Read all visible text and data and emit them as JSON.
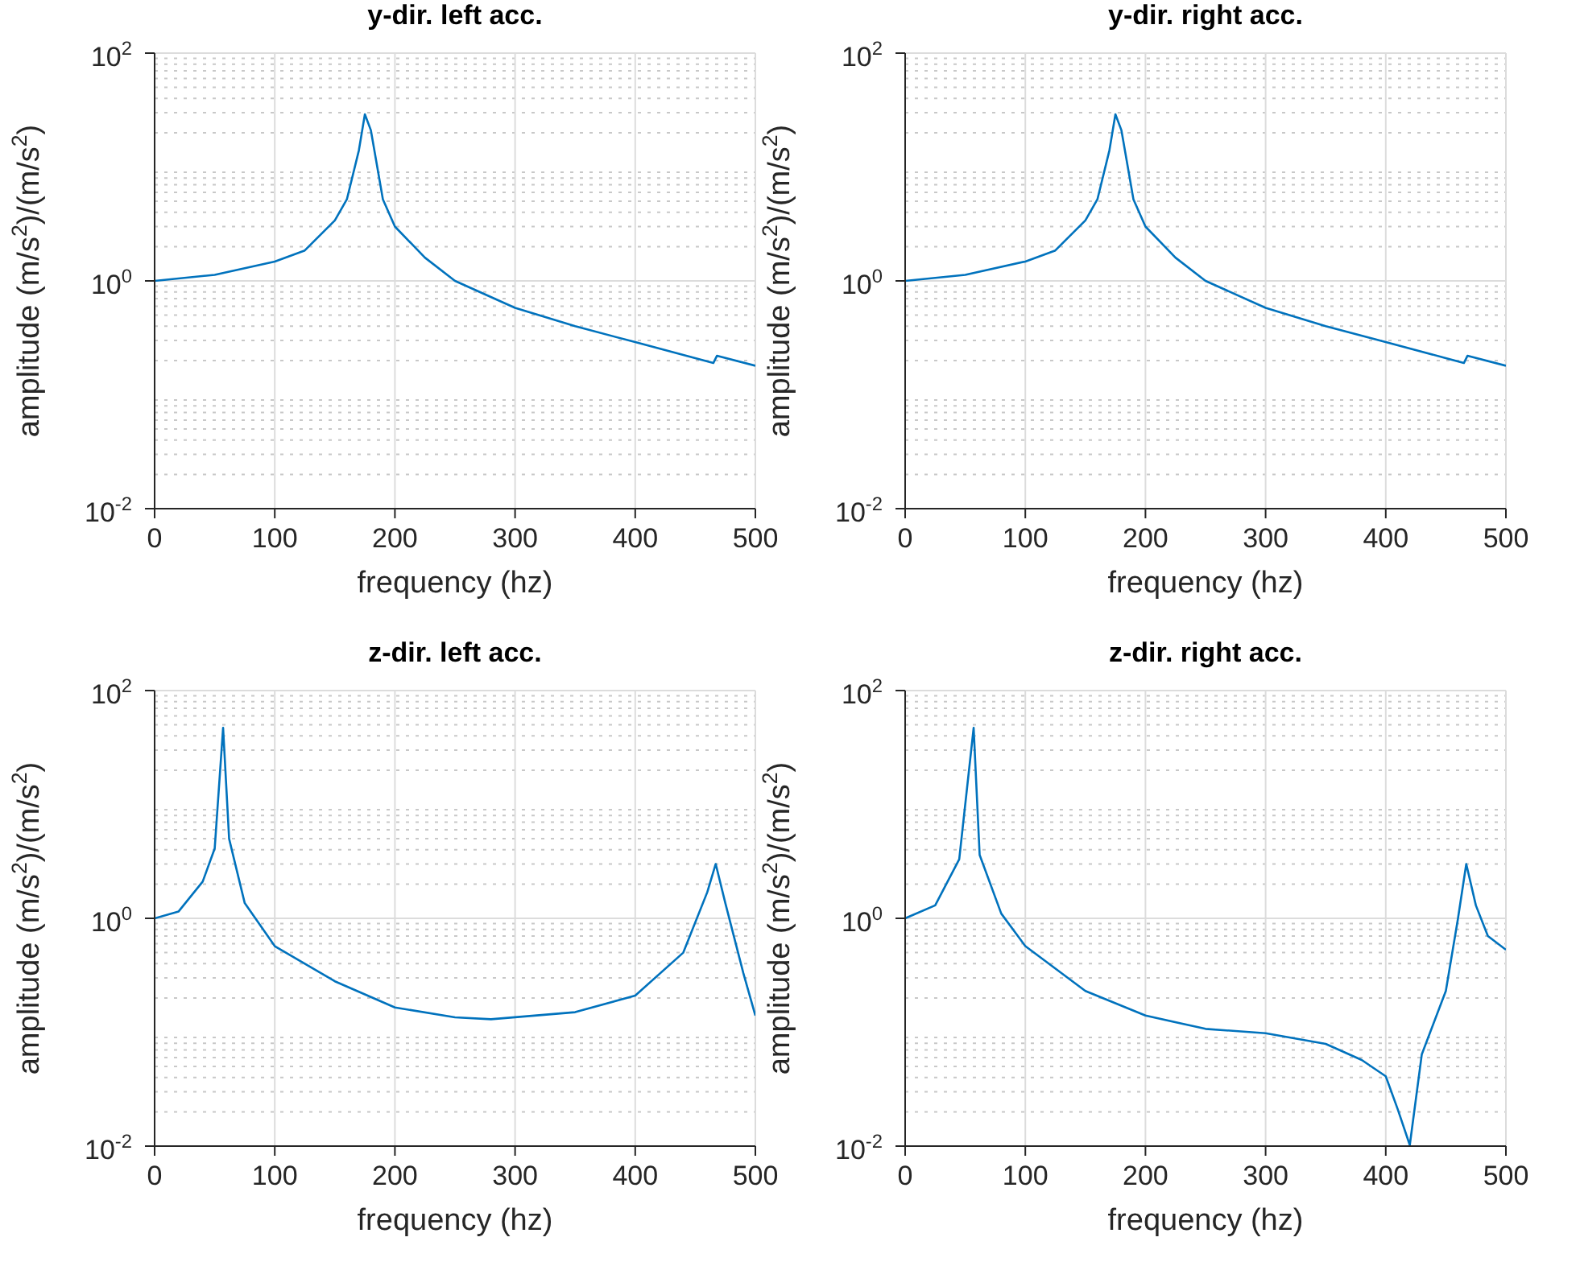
{
  "chart_data": [
    {
      "type": "line",
      "title": "y-dir. left acc.",
      "xlabel": "frequency (hz)",
      "ylabel": "amplitude (m/s$^{2}$)/(m/s$^{2}$)",
      "xlim": [
        0,
        500
      ],
      "xticks": [
        0,
        100,
        200,
        300,
        400,
        500
      ],
      "ylim": [
        0.01,
        100
      ],
      "yticks": [
        {
          "value": 0.01,
          "label": "10$^{-2}$"
        },
        {
          "value": 1,
          "label": "10$^{0}$"
        },
        {
          "value": 100,
          "label": "10$^{2}$"
        }
      ],
      "log": "y",
      "grid": true,
      "x": [
        0,
        50,
        100,
        125,
        150,
        160,
        170,
        175,
        180,
        190,
        200,
        225,
        250,
        300,
        350,
        400,
        450,
        465,
        468,
        500
      ],
      "series": [
        {
          "color": "#0072bd",
          "values": [
            1.0,
            1.13,
            1.48,
            1.85,
            3.4,
            5.2,
            14,
            29,
            21,
            5.2,
            3.0,
            1.6,
            1.0,
            0.58,
            0.4,
            0.29,
            0.21,
            0.19,
            0.22,
            0.18
          ]
        }
      ]
    },
    {
      "type": "line",
      "title": "y-dir. right acc.",
      "xlabel": "frequency (hz)",
      "ylabel": "amplitude (m/s$^{2}$)/(m/s$^{2}$)",
      "xlim": [
        0,
        500
      ],
      "xticks": [
        0,
        100,
        200,
        300,
        400,
        500
      ],
      "ylim": [
        0.01,
        100
      ],
      "yticks": [
        {
          "value": 0.01,
          "label": "10$^{-2}$"
        },
        {
          "value": 1,
          "label": "10$^{0}$"
        },
        {
          "value": 100,
          "label": "10$^{2}$"
        }
      ],
      "log": "y",
      "grid": true,
      "x": [
        0,
        50,
        100,
        125,
        150,
        160,
        170,
        175,
        180,
        190,
        200,
        225,
        250,
        300,
        350,
        400,
        450,
        465,
        468,
        500
      ],
      "series": [
        {
          "color": "#0072bd",
          "values": [
            1.0,
            1.13,
            1.48,
            1.85,
            3.4,
            5.2,
            14,
            29,
            21,
            5.2,
            3.0,
            1.6,
            1.0,
            0.58,
            0.4,
            0.29,
            0.21,
            0.19,
            0.22,
            0.18
          ]
        }
      ]
    },
    {
      "type": "line",
      "title": "z-dir. left acc.",
      "xlabel": "frequency (hz)",
      "ylabel": "amplitude (m/s$^{2}$)/(m/s$^{2}$)",
      "xlim": [
        0,
        500
      ],
      "xticks": [
        0,
        100,
        200,
        300,
        400,
        500
      ],
      "ylim": [
        0.01,
        100
      ],
      "yticks": [
        {
          "value": 0.01,
          "label": "10$^{-2}$"
        },
        {
          "value": 1,
          "label": "10$^{0}$"
        },
        {
          "value": 100,
          "label": "10$^{2}$"
        }
      ],
      "log": "y",
      "grid": true,
      "x": [
        0,
        20,
        40,
        50,
        57,
        62,
        75,
        100,
        150,
        200,
        250,
        280,
        350,
        400,
        440,
        460,
        467,
        475,
        490,
        500
      ],
      "series": [
        {
          "color": "#0072bd",
          "values": [
            1.0,
            1.15,
            2.1,
            4.1,
            47,
            5,
            1.36,
            0.57,
            0.28,
            0.165,
            0.135,
            0.13,
            0.15,
            0.21,
            0.5,
            1.7,
            3.0,
            1.36,
            0.33,
            0.14
          ]
        }
      ]
    },
    {
      "type": "line",
      "title": "z-dir. right acc.",
      "xlabel": "frequency (hz)",
      "ylabel": "amplitude (m/s$^{2}$)/(m/s$^{2}$)",
      "xlim": [
        0,
        500
      ],
      "xticks": [
        0,
        100,
        200,
        300,
        400,
        500
      ],
      "ylim": [
        0.01,
        100
      ],
      "yticks": [
        {
          "value": 0.01,
          "label": "10$^{-2}$"
        },
        {
          "value": 1,
          "label": "10$^{0}$"
        },
        {
          "value": 100,
          "label": "10$^{2}$"
        }
      ],
      "log": "y",
      "grid": true,
      "x": [
        0,
        25,
        45,
        57,
        62,
        80,
        100,
        150,
        200,
        250,
        300,
        350,
        380,
        400,
        410,
        420,
        430,
        450,
        460,
        467,
        475,
        485,
        500
      ],
      "series": [
        {
          "color": "#0072bd",
          "values": [
            1.0,
            1.3,
            3.3,
            47,
            3.6,
            1.1,
            0.57,
            0.23,
            0.14,
            0.107,
            0.098,
            0.079,
            0.057,
            0.041,
            0.021,
            0.0102,
            0.064,
            0.23,
            0.98,
            3.0,
            1.3,
            0.7,
            0.53
          ]
        }
      ]
    }
  ]
}
